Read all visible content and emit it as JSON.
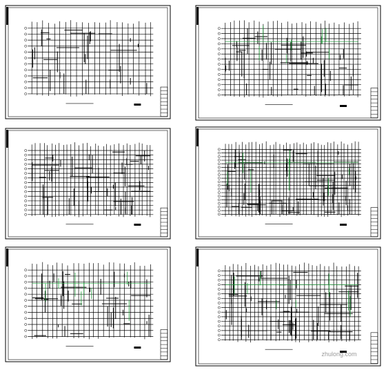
{
  "watermark": "zhulong.com"
}
